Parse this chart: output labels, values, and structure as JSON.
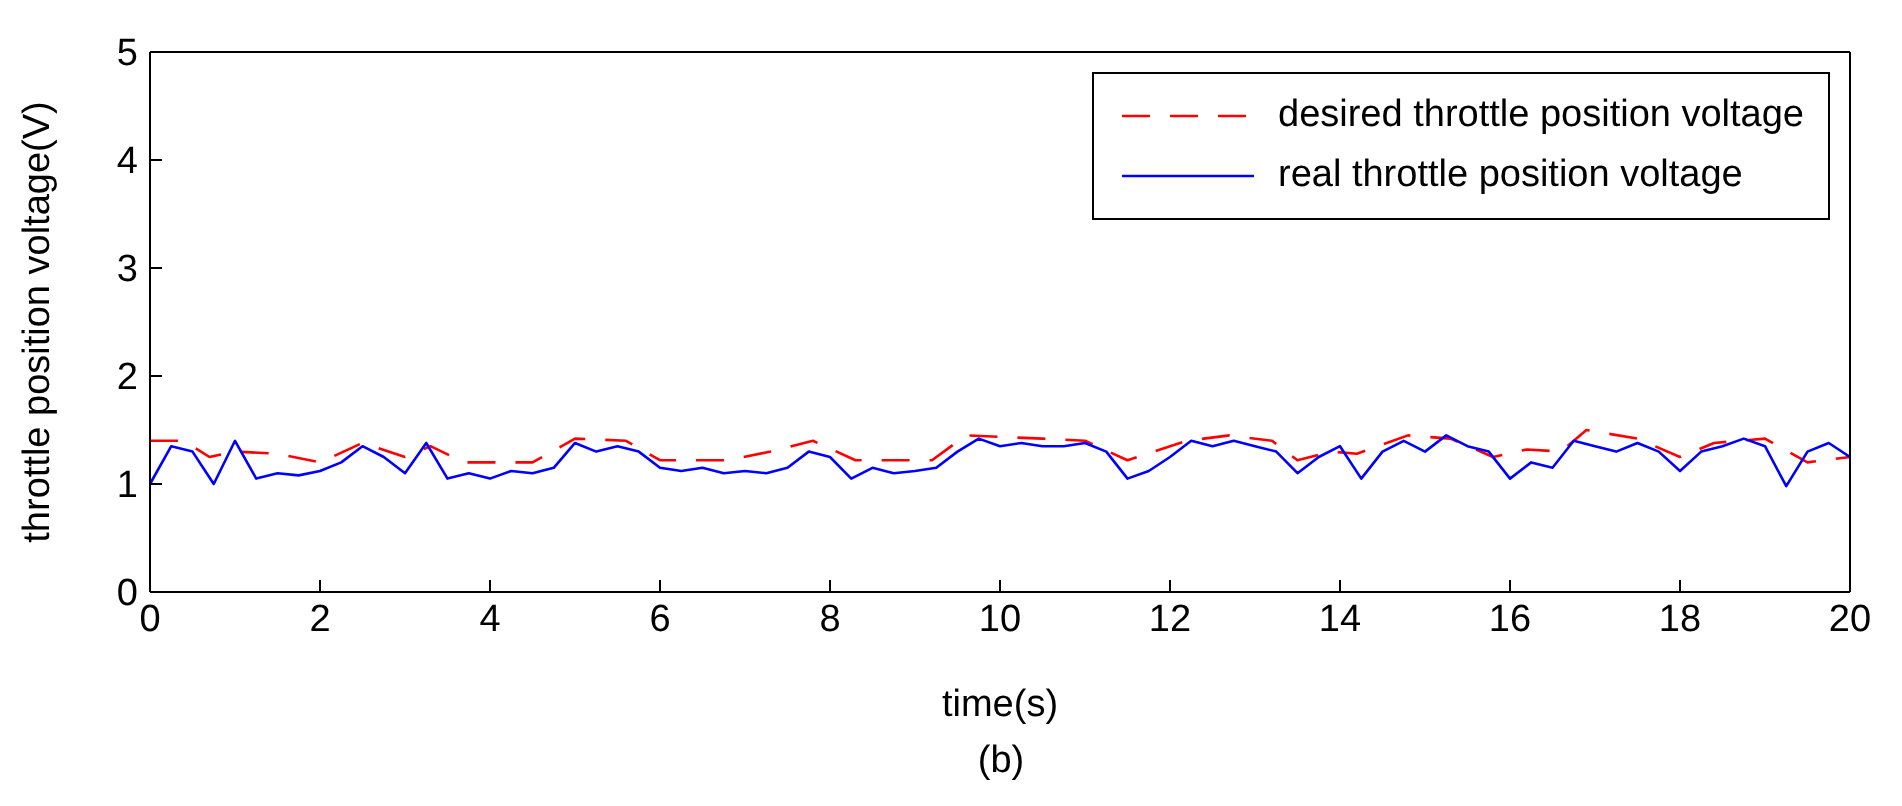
{
  "chart_data": {
    "type": "line",
    "xlabel": "time(s)",
    "ylabel": "throttle position voltage(V)",
    "annotations": [
      "(b)"
    ],
    "xlim": [
      0,
      20
    ],
    "xticks": [
      0,
      2,
      4,
      6,
      8,
      10,
      12,
      14,
      16,
      18,
      20
    ],
    "ylim": [
      0,
      5
    ],
    "yticks": [
      0,
      1,
      2,
      3,
      4,
      5
    ],
    "legend": "top right",
    "marker": "none",
    "series": [
      {
        "name": "desired throttle position voltage",
        "color": "#ff0000",
        "line_style": "dashed",
        "x": [
          0,
          0.4,
          0.7,
          1,
          1.5,
          2,
          2.5,
          3,
          3.3,
          3.7,
          4.5,
          5,
          5.6,
          6,
          6.8,
          7.3,
          7.8,
          8.3,
          9.2,
          9.6,
          10.5,
          11,
          11.5,
          12.2,
          12.7,
          13.2,
          13.5,
          13.9,
          14.2,
          14.8,
          15.3,
          15.8,
          16.2,
          16.6,
          16.9,
          17.5,
          18,
          18.4,
          19,
          19.5,
          20
        ],
        "values": [
          1.4,
          1.4,
          1.25,
          1.3,
          1.28,
          1.2,
          1.38,
          1.25,
          1.35,
          1.2,
          1.2,
          1.42,
          1.4,
          1.22,
          1.22,
          1.3,
          1.4,
          1.22,
          1.22,
          1.45,
          1.42,
          1.4,
          1.22,
          1.4,
          1.45,
          1.4,
          1.22,
          1.3,
          1.28,
          1.45,
          1.42,
          1.25,
          1.32,
          1.3,
          1.5,
          1.42,
          1.25,
          1.38,
          1.42,
          1.2,
          1.25
        ]
      },
      {
        "name": "real throttle position voltage",
        "color": "#0000ff",
        "line_style": "solid",
        "x": [
          0,
          0.25,
          0.5,
          0.75,
          1,
          1.25,
          1.5,
          1.75,
          2,
          2.25,
          2.5,
          2.75,
          3,
          3.25,
          3.5,
          3.75,
          4,
          4.25,
          4.5,
          4.75,
          5,
          5.25,
          5.5,
          5.75,
          6,
          6.25,
          6.5,
          6.75,
          7,
          7.25,
          7.5,
          7.75,
          8,
          8.25,
          8.5,
          8.75,
          9,
          9.25,
          9.5,
          9.75,
          10,
          10.25,
          10.5,
          10.75,
          11,
          11.25,
          11.5,
          11.75,
          12,
          12.25,
          12.5,
          12.75,
          13,
          13.25,
          13.5,
          13.75,
          14,
          14.25,
          14.5,
          14.75,
          15,
          15.25,
          15.5,
          15.75,
          16,
          16.25,
          16.5,
          16.75,
          17,
          17.25,
          17.5,
          17.75,
          18,
          18.25,
          18.5,
          18.75,
          19,
          19.25,
          19.5,
          19.75,
          20
        ],
        "values": [
          1.0,
          1.35,
          1.3,
          1.0,
          1.4,
          1.05,
          1.1,
          1.08,
          1.12,
          1.2,
          1.35,
          1.25,
          1.1,
          1.38,
          1.05,
          1.1,
          1.05,
          1.12,
          1.1,
          1.15,
          1.38,
          1.3,
          1.35,
          1.3,
          1.15,
          1.12,
          1.15,
          1.1,
          1.12,
          1.1,
          1.15,
          1.3,
          1.25,
          1.05,
          1.15,
          1.1,
          1.12,
          1.15,
          1.3,
          1.42,
          1.35,
          1.38,
          1.35,
          1.35,
          1.38,
          1.3,
          1.05,
          1.12,
          1.25,
          1.4,
          1.35,
          1.4,
          1.35,
          1.3,
          1.1,
          1.25,
          1.35,
          1.05,
          1.3,
          1.4,
          1.3,
          1.45,
          1.35,
          1.3,
          1.05,
          1.2,
          1.15,
          1.4,
          1.35,
          1.3,
          1.38,
          1.3,
          1.12,
          1.3,
          1.35,
          1.42,
          1.35,
          0.98,
          1.3,
          1.38,
          1.25
        ]
      }
    ]
  }
}
